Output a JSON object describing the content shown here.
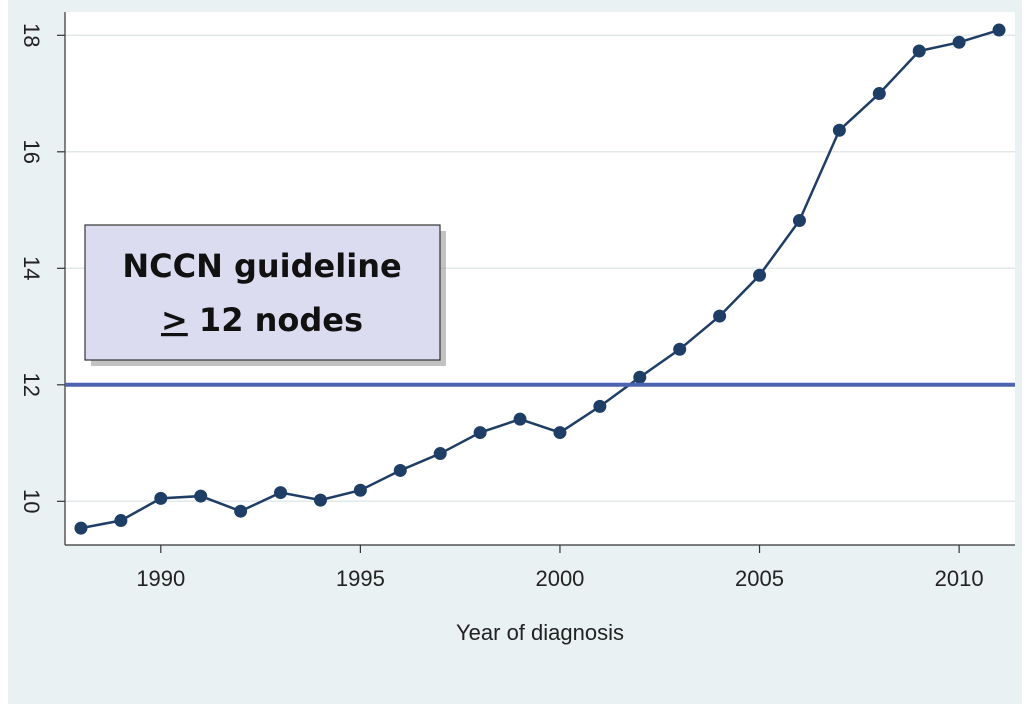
{
  "chart_data": {
    "type": "line",
    "x_label": "Year of diagnosis",
    "x": [
      1988,
      1989,
      1990,
      1991,
      1992,
      1993,
      1994,
      1995,
      1996,
      1997,
      1998,
      1999,
      2000,
      2001,
      2002,
      2003,
      2004,
      2005,
      2006,
      2007,
      2008,
      2009,
      2010,
      2011
    ],
    "values": [
      9.54,
      9.67,
      10.05,
      10.09,
      9.83,
      10.15,
      10.02,
      10.19,
      10.53,
      10.82,
      11.18,
      11.41,
      11.18,
      11.63,
      12.13,
      12.61,
      13.18,
      13.88,
      14.82,
      16.37,
      17.0,
      17.73,
      17.88,
      18.09
    ],
    "color": "#1f3e66",
    "xlim": [
      1987.6,
      2011.4
    ],
    "xticks": [
      1990,
      1995,
      2000,
      2005,
      2010
    ],
    "ylim": [
      9.25,
      18.4
    ],
    "yticks": [
      10,
      12,
      14,
      16,
      18
    ],
    "grid": true,
    "reference_line": {
      "value": 12,
      "color": "#4a64b0"
    },
    "annotation": {
      "line1": "NCCN guideline",
      "symbol": ">",
      "line2": "12 nodes"
    }
  }
}
